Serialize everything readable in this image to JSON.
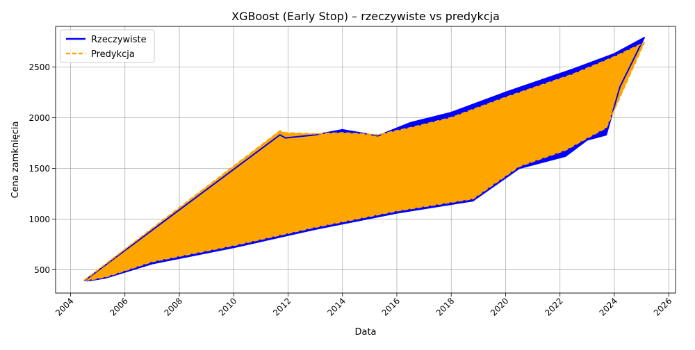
{
  "chart_data": {
    "type": "line",
    "title": "XGBoost (Early Stop) – rzeczywiste vs predykcja",
    "xlabel": "Data",
    "ylabel": "Cena zamknięcia",
    "x_ticks": [
      "2004",
      "2006",
      "2008",
      "2010",
      "2012",
      "2014",
      "2016",
      "2018",
      "2020",
      "2022",
      "2024",
      "2026"
    ],
    "y_ticks": [
      500,
      1000,
      1500,
      2000,
      2500
    ],
    "xlim": [
      2003.45,
      2026.25
    ],
    "ylim": [
      270,
      2900
    ],
    "grid": true,
    "legend_position": "top-left",
    "series": [
      {
        "name": "Rzeczywiste",
        "color": "#0000ff",
        "style": "solid",
        "x": [
          2004.5,
          2011.7,
          2011.9,
          2013.0,
          2014.0,
          2015.3,
          2016.5,
          2018.0,
          2020.0,
          2022.5,
          2024.0,
          2025.1,
          2024.2,
          2023.7,
          2023.0,
          2022.2,
          2020.5,
          2018.8,
          2016.0,
          2013.0,
          2010.0,
          2007.0,
          2005.3,
          2004.6
        ],
        "values": [
          390,
          1830,
          1800,
          1830,
          1880,
          1820,
          1950,
          2050,
          2250,
          2480,
          2630,
          2790,
          2300,
          1830,
          1780,
          1620,
          1500,
          1180,
          1060,
          900,
          720,
          560,
          420,
          390
        ]
      },
      {
        "name": "Predykcja",
        "color": "#ffa500",
        "style": "dashed",
        "x": [
          2004.5,
          2011.7,
          2011.9,
          2013.0,
          2014.0,
          2015.3,
          2016.5,
          2018.0,
          2020.0,
          2022.5,
          2024.0,
          2025.1,
          2024.2,
          2023.7,
          2023.0,
          2022.2,
          2020.5,
          2018.8,
          2016.0,
          2013.0,
          2010.0,
          2007.0,
          2005.3,
          2004.6
        ],
        "values": [
          395,
          1870,
          1850,
          1840,
          1850,
          1830,
          1900,
          2000,
          2200,
          2430,
          2600,
          2740,
          2200,
          1900,
          1800,
          1680,
          1520,
          1200,
          1080,
          920,
          740,
          580,
          430,
          395
        ]
      }
    ]
  }
}
